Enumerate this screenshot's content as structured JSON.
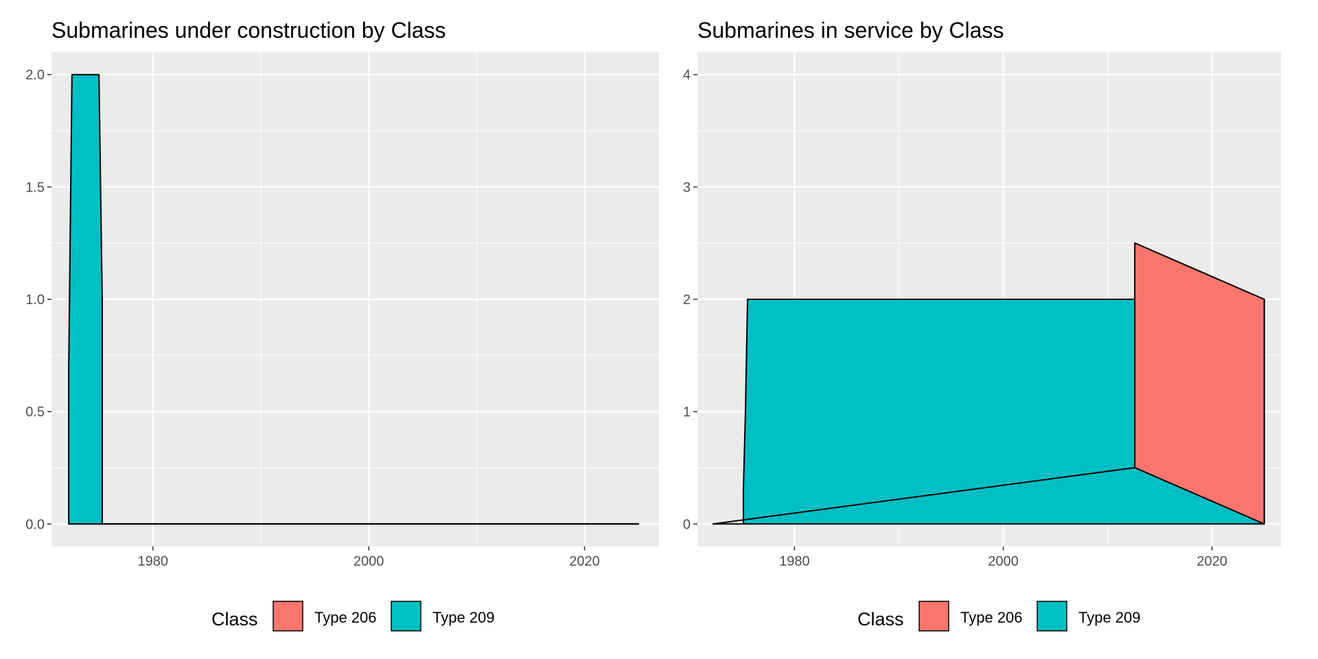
{
  "chart_data": [
    {
      "type": "area",
      "stacked": true,
      "title": "Submarines under construction by Class",
      "xlabel": "",
      "ylabel": "",
      "xlim": [
        1970.6,
        2026.9
      ],
      "ylim": [
        -0.1,
        2.1
      ],
      "x_ticks": [
        1980,
        2000,
        2020
      ],
      "x_tick_labels": [
        "1980",
        "2000",
        "2020"
      ],
      "y_ticks": [
        0,
        0.5,
        1,
        1.5,
        2
      ],
      "y_tick_labels": [
        "0.0",
        "0.5",
        "1.0",
        "1.5",
        "2.0"
      ],
      "grid": true,
      "series": [
        {
          "name": "Type 206",
          "color": "#F8766D",
          "x": [
            1972.2,
            2025.0
          ],
          "values": [
            0,
            0
          ]
        },
        {
          "name": "Type 209",
          "color": "#00BFC4",
          "x": [
            1972.2,
            1972.2,
            1972.5,
            1975.0,
            1975.3,
            1975.3,
            2025.0
          ],
          "values": [
            0,
            0.7,
            2,
            2,
            1,
            0,
            0
          ]
        }
      ]
    },
    {
      "type": "area",
      "stacked": true,
      "title": "Submarines in service by Class",
      "xlabel": "",
      "ylabel": "",
      "xlim": [
        1970.7,
        2026.6
      ],
      "ylim": [
        -0.2,
        4.2
      ],
      "x_ticks": [
        1980,
        2000,
        2020
      ],
      "x_tick_labels": [
        "1980",
        "2000",
        "2020"
      ],
      "y_ticks": [
        0,
        1,
        2,
        3,
        4
      ],
      "y_tick_labels": [
        "0",
        "1",
        "2",
        "3",
        "4"
      ],
      "grid": true,
      "series": [
        {
          "name": "Type 209",
          "color": "#00BFC4",
          "x": [
            1972.2,
            1975.1,
            1975.1,
            1975.3,
            1975.5,
            2025.0,
            2025.0
          ],
          "values": [
            0,
            0,
            0.3,
            1,
            2,
            2,
            0
          ]
        },
        {
          "name": "Type 206",
          "color": "#F8766D",
          "x": [
            1972.2,
            2012.6,
            2012.6,
            2025.0,
            2025.0
          ],
          "values": [
            0,
            0,
            2,
            2,
            0
          ]
        }
      ]
    }
  ],
  "legends": [
    {
      "title": "Class",
      "items": [
        {
          "label": "Type 206",
          "color": "#F8766D"
        },
        {
          "label": "Type 209",
          "color": "#00BFC4"
        }
      ]
    },
    {
      "title": "Class",
      "items": [
        {
          "label": "Type 206",
          "color": "#F8766D"
        },
        {
          "label": "Type 209",
          "color": "#00BFC4"
        }
      ]
    }
  ],
  "colors": {
    "panel_background": "#EBEBEB",
    "grid": "#FFFFFF",
    "tick_text": "#4D4D4D",
    "outline": "#000000"
  }
}
